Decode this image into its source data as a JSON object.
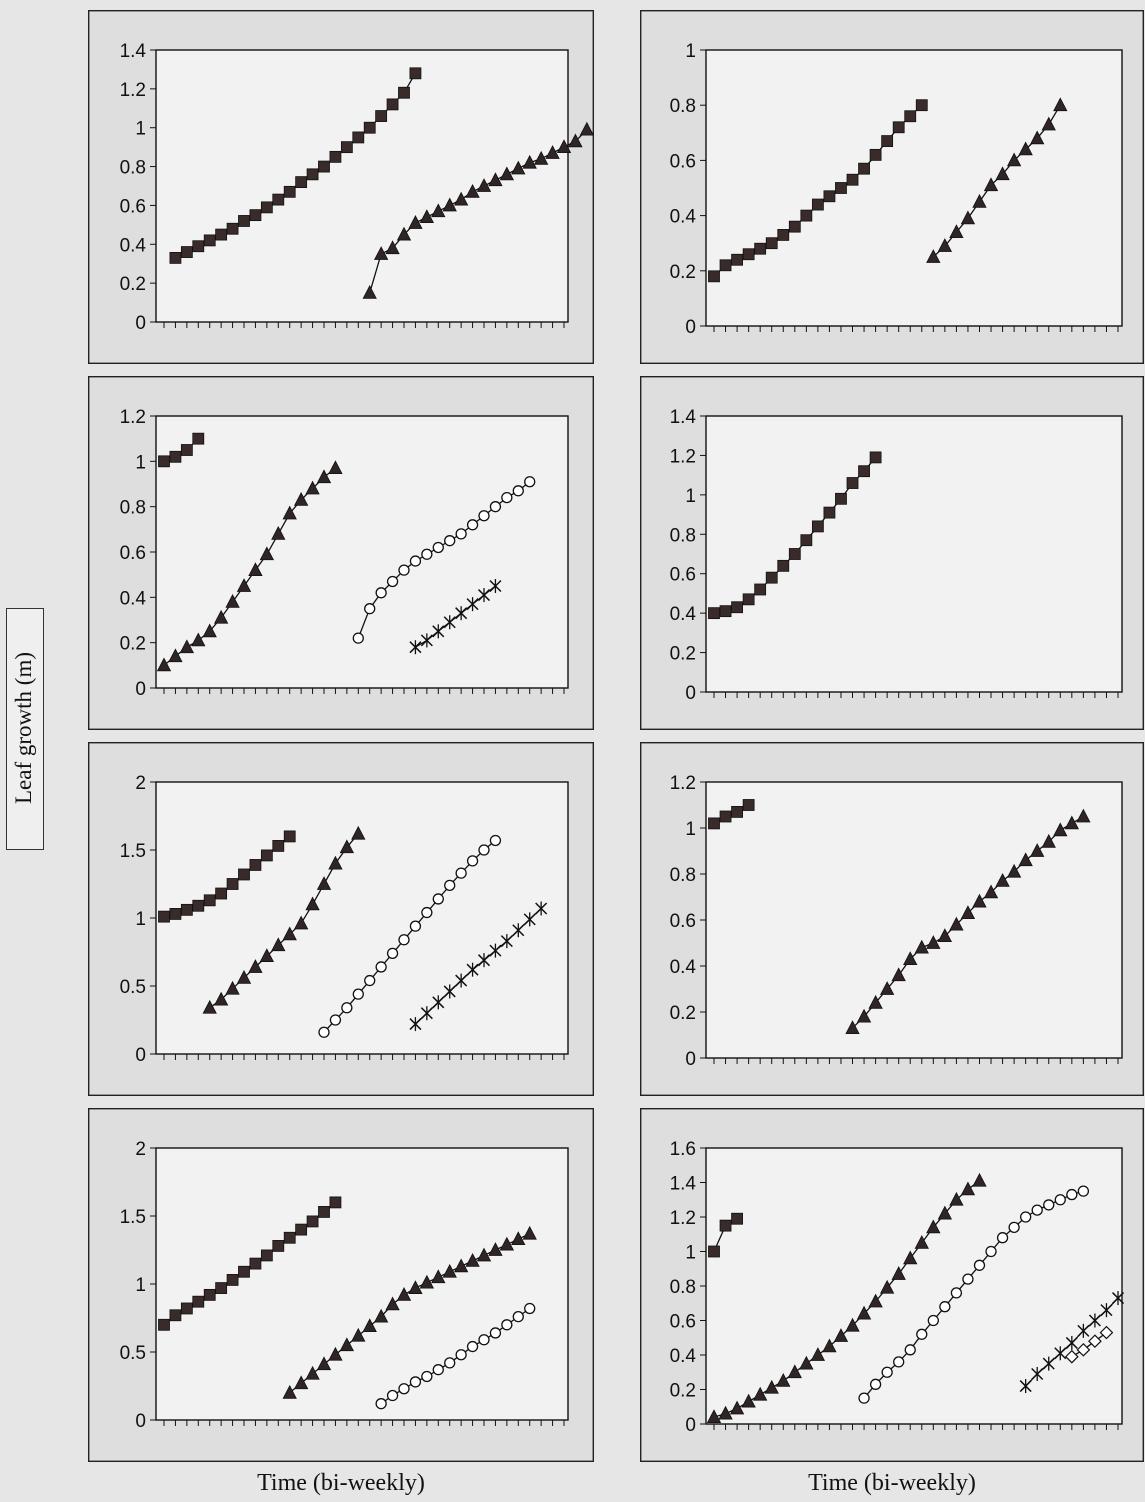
{
  "figure": {
    "y_axis_label": "Leaf growth (m)",
    "x_axis_label_left": "Time (bi-weekly)",
    "x_axis_label_right": "Time (bi-weekly)"
  },
  "chart_data": [
    {
      "type": "line",
      "ylim": [
        0,
        1.4
      ],
      "yticks": [
        "0",
        "0.2",
        "0.4",
        "0.6",
        "0.8",
        "1",
        "1.2",
        "1.4"
      ],
      "num_x_ticks": 36,
      "series": [
        {
          "marker": "square",
          "start": 1,
          "values": [
            0.33,
            0.36,
            0.39,
            0.42,
            0.45,
            0.48,
            0.52,
            0.55,
            0.59,
            0.63,
            0.67,
            0.72,
            0.76,
            0.8,
            0.85,
            0.9,
            0.95,
            1.0,
            1.06,
            1.12,
            1.18,
            1.28
          ]
        },
        {
          "marker": "triangle",
          "start": 18,
          "values": [
            0.15,
            0.35,
            0.38,
            0.45,
            0.51,
            0.54,
            0.57,
            0.6,
            0.63,
            0.67,
            0.7,
            0.73,
            0.76,
            0.79,
            0.82,
            0.84,
            0.87,
            0.9,
            0.93,
            0.99
          ]
        }
      ]
    },
    {
      "type": "line",
      "ylim": [
        0,
        1
      ],
      "yticks": [
        "0",
        "0.2",
        "0.4",
        "0.6",
        "0.8",
        "1"
      ],
      "num_x_ticks": 36,
      "series": [
        {
          "marker": "square",
          "start": 0,
          "values": [
            0.18,
            0.22,
            0.24,
            0.26,
            0.28,
            0.3,
            0.33,
            0.36,
            0.4,
            0.44,
            0.47,
            0.5,
            0.53,
            0.57,
            0.62,
            0.67,
            0.72,
            0.76,
            0.8
          ]
        },
        {
          "marker": "triangle",
          "start": 19,
          "values": [
            0.25,
            0.29,
            0.34,
            0.39,
            0.45,
            0.51,
            0.55,
            0.6,
            0.64,
            0.68,
            0.73,
            0.8
          ]
        }
      ]
    },
    {
      "type": "line",
      "ylim": [
        0,
        1.2
      ],
      "yticks": [
        "0",
        "0.2",
        "0.4",
        "0.6",
        "0.8",
        "1",
        "1.2"
      ],
      "num_x_ticks": 36,
      "series": [
        {
          "marker": "square",
          "start": 0,
          "values": [
            1.0,
            1.02,
            1.05,
            1.1
          ]
        },
        {
          "marker": "triangle",
          "start": 0,
          "values": [
            0.1,
            0.14,
            0.18,
            0.21,
            0.25,
            0.31,
            0.38,
            0.45,
            0.52,
            0.59,
            0.68,
            0.77,
            0.83,
            0.88,
            0.93,
            0.97
          ]
        },
        {
          "marker": "circle",
          "start": 17,
          "values": [
            0.22,
            0.35,
            0.42,
            0.47,
            0.52,
            0.56,
            0.59,
            0.62,
            0.65,
            0.68,
            0.72,
            0.76,
            0.8,
            0.84,
            0.87,
            0.91
          ]
        },
        {
          "marker": "cross",
          "start": 22,
          "values": [
            0.18,
            0.21,
            0.25,
            0.29,
            0.33,
            0.37,
            0.41,
            0.45
          ]
        }
      ]
    },
    {
      "type": "line",
      "ylim": [
        0,
        1.4
      ],
      "yticks": [
        "0",
        "0.2",
        "0.4",
        "0.6",
        "0.8",
        "1",
        "1.2",
        "1.4"
      ],
      "num_x_ticks": 36,
      "series": [
        {
          "marker": "square",
          "start": 0,
          "values": [
            0.4,
            0.41,
            0.43,
            0.47,
            0.52,
            0.58,
            0.64,
            0.7,
            0.77,
            0.84,
            0.91,
            0.98,
            1.06,
            1.12,
            1.19
          ]
        }
      ]
    },
    {
      "type": "line",
      "ylim": [
        0,
        2
      ],
      "yticks": [
        "0",
        "0.5",
        "1",
        "1.5",
        "2"
      ],
      "num_x_ticks": 36,
      "series": [
        {
          "marker": "square",
          "start": 0,
          "values": [
            1.01,
            1.03,
            1.06,
            1.09,
            1.13,
            1.18,
            1.25,
            1.32,
            1.39,
            1.46,
            1.53,
            1.6
          ]
        },
        {
          "marker": "triangle",
          "start": 4,
          "values": [
            0.34,
            0.4,
            0.48,
            0.56,
            0.64,
            0.72,
            0.8,
            0.88,
            0.96,
            1.1,
            1.25,
            1.4,
            1.52,
            1.62
          ]
        },
        {
          "marker": "circle",
          "start": 14,
          "values": [
            0.16,
            0.25,
            0.34,
            0.44,
            0.54,
            0.64,
            0.74,
            0.84,
            0.94,
            1.04,
            1.14,
            1.24,
            1.33,
            1.42,
            1.5,
            1.57
          ]
        },
        {
          "marker": "cross",
          "start": 22,
          "values": [
            0.22,
            0.3,
            0.38,
            0.46,
            0.54,
            0.62,
            0.69,
            0.76,
            0.83,
            0.91,
            0.99,
            1.07
          ]
        }
      ]
    },
    {
      "type": "line",
      "ylim": [
        0,
        1.2
      ],
      "yticks": [
        "0",
        "0.2",
        "0.4",
        "0.6",
        "0.8",
        "1",
        "1.2"
      ],
      "num_x_ticks": 36,
      "series": [
        {
          "marker": "square",
          "start": 0,
          "values": [
            1.02,
            1.05,
            1.07,
            1.1
          ]
        },
        {
          "marker": "triangle",
          "start": 12,
          "values": [
            0.13,
            0.18,
            0.24,
            0.3,
            0.36,
            0.43,
            0.48,
            0.5,
            0.53,
            0.58,
            0.63,
            0.68,
            0.72,
            0.77,
            0.81,
            0.86,
            0.9,
            0.94,
            0.99,
            1.02,
            1.05
          ]
        }
      ]
    },
    {
      "type": "line",
      "ylim": [
        0,
        2
      ],
      "yticks": [
        "0",
        "0.5",
        "1",
        "1.5",
        "2"
      ],
      "num_x_ticks": 36,
      "series": [
        {
          "marker": "square",
          "start": 0,
          "values": [
            0.7,
            0.77,
            0.82,
            0.87,
            0.92,
            0.97,
            1.03,
            1.09,
            1.15,
            1.21,
            1.28,
            1.34,
            1.4,
            1.46,
            1.53,
            1.6
          ]
        },
        {
          "marker": "triangle",
          "start": 11,
          "values": [
            0.2,
            0.27,
            0.34,
            0.41,
            0.48,
            0.55,
            0.62,
            0.69,
            0.76,
            0.85,
            0.92,
            0.97,
            1.01,
            1.05,
            1.09,
            1.13,
            1.17,
            1.21,
            1.25,
            1.29,
            1.33,
            1.37
          ]
        },
        {
          "marker": "circle",
          "start": 19,
          "values": [
            0.12,
            0.18,
            0.23,
            0.28,
            0.32,
            0.37,
            0.42,
            0.48,
            0.54,
            0.59,
            0.64,
            0.7,
            0.76,
            0.82
          ]
        }
      ]
    },
    {
      "type": "line",
      "ylim": [
        0,
        1.6
      ],
      "yticks": [
        "0",
        "0.2",
        "0.4",
        "0.6",
        "0.8",
        "1",
        "1.2",
        "1.4",
        "1.6"
      ],
      "num_x_ticks": 36,
      "series": [
        {
          "marker": "square",
          "start": 0,
          "values": [
            1.0,
            1.15,
            1.19
          ]
        },
        {
          "marker": "triangle",
          "start": 0,
          "values": [
            0.04,
            0.06,
            0.09,
            0.13,
            0.17,
            0.21,
            0.25,
            0.3,
            0.35,
            0.4,
            0.45,
            0.51,
            0.57,
            0.64,
            0.71,
            0.79,
            0.87,
            0.96,
            1.05,
            1.14,
            1.22,
            1.3,
            1.36,
            1.41
          ]
        },
        {
          "marker": "circle",
          "start": 13,
          "values": [
            0.15,
            0.23,
            0.3,
            0.36,
            0.43,
            0.52,
            0.6,
            0.68,
            0.76,
            0.84,
            0.92,
            1.0,
            1.08,
            1.14,
            1.2,
            1.24,
            1.27,
            1.3,
            1.33,
            1.35
          ]
        },
        {
          "marker": "cross",
          "start": 27,
          "values": [
            0.22,
            0.29,
            0.35,
            0.41,
            0.47,
            0.54,
            0.6,
            0.66,
            0.73
          ]
        },
        {
          "marker": "diamond",
          "start": 31,
          "values": [
            0.39,
            0.43,
            0.48,
            0.53
          ]
        }
      ]
    }
  ]
}
